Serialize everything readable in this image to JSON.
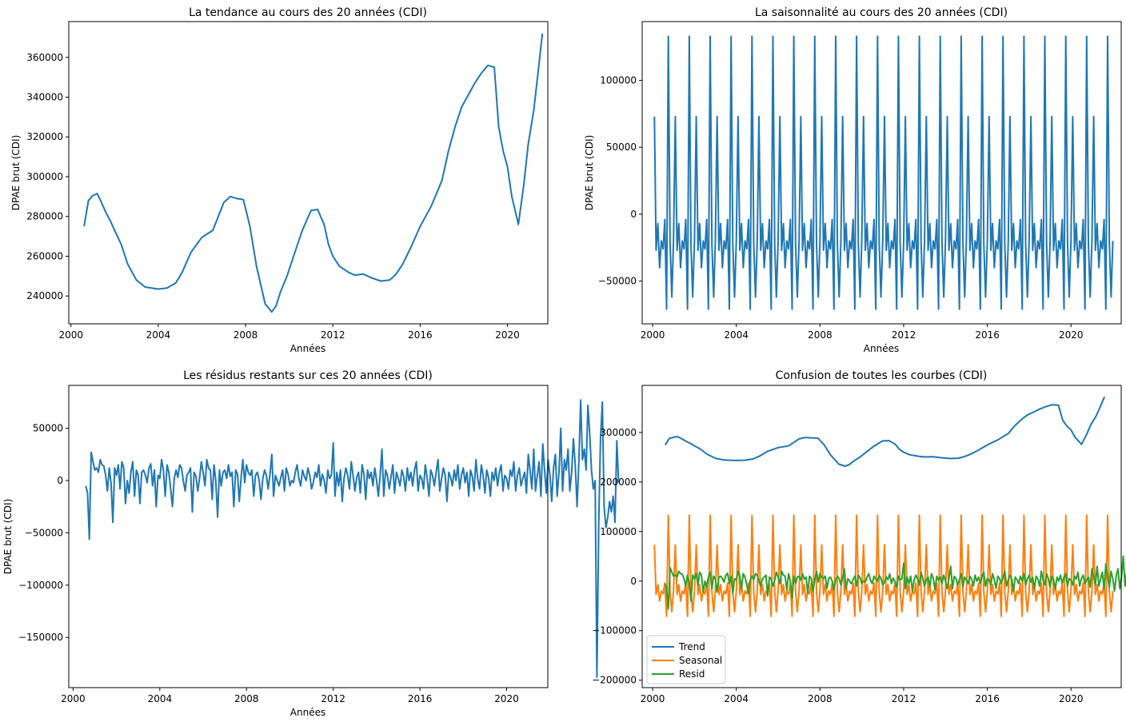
{
  "figure": {
    "background": "#ffffff"
  },
  "chart_data": [
    {
      "type": "line",
      "title": "La tendance au cours des 20 années (CDI)",
      "xlabel": "Années",
      "ylabel": "DPAE brut (CDI)",
      "xlim": [
        1999.9,
        2021.85
      ],
      "ylim": [
        226000,
        378000
      ],
      "xticks": [
        2000,
        2004,
        2008,
        2012,
        2016,
        2020
      ],
      "xtick_labels": [
        "2000",
        "2004",
        "2008",
        "2012",
        "2016",
        "2020"
      ],
      "yticks": [
        240000,
        260000,
        280000,
        300000,
        320000,
        340000,
        360000
      ],
      "ytick_labels": [
        "240000",
        "260000",
        "280000",
        "300000",
        "320000",
        "340000",
        "360000"
      ],
      "series": [
        {
          "name": "Trend",
          "color": "#1f77b4",
          "x": [
            2000.6,
            2000.8,
            2001.0,
            2001.2,
            2001.4,
            2001.6,
            2001.8,
            2002.0,
            2002.3,
            2002.6,
            2003.0,
            2003.4,
            2003.7,
            2004.0,
            2004.4,
            2004.8,
            2005.1,
            2005.5,
            2006.0,
            2006.5,
            2007.0,
            2007.3,
            2007.6,
            2007.9,
            2008.2,
            2008.5,
            2008.9,
            2009.2,
            2009.4,
            2009.6,
            2009.9,
            2010.2,
            2010.6,
            2011.0,
            2011.3,
            2011.6,
            2011.8,
            2012.0,
            2012.3,
            2012.7,
            2013.0,
            2013.4,
            2013.8,
            2014.2,
            2014.6,
            2014.9,
            2015.2,
            2015.6,
            2016.0,
            2016.5,
            2017.0,
            2017.3,
            2017.6,
            2017.9,
            2018.2,
            2018.5,
            2018.8,
            2019.1,
            2019.4,
            2019.6,
            2019.8,
            2020.0,
            2020.2,
            2020.5,
            2020.75,
            2020.95,
            2021.2,
            2021.4,
            2021.6
          ],
          "y": [
            275000,
            288000,
            290500,
            291500,
            287000,
            282000,
            278000,
            273000,
            266000,
            256000,
            248000,
            244500,
            244000,
            243500,
            244000,
            246500,
            252000,
            262000,
            269500,
            273000,
            287000,
            290000,
            289000,
            288500,
            275000,
            255000,
            236000,
            232000,
            235000,
            242000,
            250000,
            260000,
            273000,
            283000,
            283500,
            276000,
            266000,
            260000,
            255000,
            252000,
            250500,
            251000,
            249000,
            247500,
            248000,
            251000,
            256000,
            265000,
            275000,
            285000,
            298000,
            313000,
            325000,
            335000,
            341000,
            347000,
            352000,
            356000,
            355000,
            325000,
            313000,
            305000,
            290000,
            276000,
            296000,
            316000,
            333000,
            352000,
            372000
          ]
        }
      ]
    },
    {
      "type": "line",
      "title": "La saisonnalité au cours des 20 années (CDI)",
      "xlabel": "Années",
      "ylabel": "DPAE brut (CDI)",
      "xlim": [
        1999.5,
        2022.4
      ],
      "ylim": [
        -82000,
        144000
      ],
      "xticks": [
        2000,
        2004,
        2008,
        2012,
        2016,
        2020
      ],
      "xtick_labels": [
        "2000",
        "2004",
        "2008",
        "2012",
        "2016",
        "2020"
      ],
      "yticks": [
        -50000,
        0,
        50000,
        100000
      ],
      "ytick_labels": [
        "−50000",
        "0",
        "50000",
        "100000"
      ],
      "series": [
        {
          "name": "Seasonal",
          "color": "#1f77b4",
          "period": 1.0,
          "start": 2000.0833,
          "end": 2022.0,
          "profile": [
            73000,
            -27000,
            -7000,
            -40000,
            -20000,
            -26000,
            -4000,
            -71000,
            133000,
            -22000,
            -62000,
            -20000
          ]
        }
      ]
    },
    {
      "type": "line",
      "title": "Les résidus restants sur ces 20 années (CDI)",
      "xlabel": "Années",
      "ylabel": "DPAE brut (CDI)",
      "xlim": [
        1999.8,
        2021.9
      ],
      "ylim": [
        -198000,
        91000
      ],
      "xticks": [
        2000,
        2004,
        2008,
        2012,
        2016,
        2020
      ],
      "xtick_labels": [
        "2000",
        "2004",
        "2008",
        "2012",
        "2016",
        "2020"
      ],
      "yticks": [
        -150000,
        -100000,
        -50000,
        0,
        50000
      ],
      "ytick_labels": [
        "−150000",
        "−100000",
        "−50000",
        "0",
        "50000"
      ],
      "series": [
        {
          "name": "Resid",
          "color": "#1f77b4",
          "start": 2000.5833,
          "step": 0.08333,
          "values": [
            -5000,
            -12000,
            -56000,
            27000,
            18000,
            10000,
            12000,
            8000,
            20000,
            15000,
            14000,
            5000,
            -10000,
            12000,
            -3000,
            -40000,
            12000,
            5000,
            15000,
            -8000,
            18000,
            12000,
            -22000,
            0,
            -12000,
            8000,
            18000,
            -15000,
            10000,
            5000,
            -22000,
            8000,
            10000,
            5000,
            -2000,
            12000,
            16000,
            -5000,
            10000,
            -25000,
            5000,
            2000,
            20000,
            10000,
            -15000,
            15000,
            8000,
            -8000,
            -25000,
            2000,
            10000,
            3000,
            15000,
            12000,
            0,
            -10000,
            5000,
            8000,
            12000,
            -30000,
            8000,
            4000,
            -10000,
            2000,
            18000,
            8000,
            -5000,
            20000,
            12000,
            10000,
            -18000,
            15000,
            0,
            -35000,
            10000,
            -5000,
            8000,
            10000,
            2000,
            15000,
            4000,
            8000,
            -25000,
            10000,
            6000,
            -20000,
            3000,
            20000,
            -2000,
            15000,
            8000,
            5000,
            10000,
            -15000,
            5000,
            8000,
            0,
            -18000,
            2000,
            10000,
            5000,
            -8000,
            6000,
            25000,
            -15000,
            5000,
            0,
            -5000,
            3000,
            10000,
            -10000,
            12000,
            6000,
            -5000,
            0,
            -2000,
            8000,
            15000,
            2000,
            -5000,
            10000,
            4000,
            0,
            12000,
            5000,
            -8000,
            -2000,
            8000,
            3000,
            15000,
            -5000,
            6000,
            0,
            -12000,
            10000,
            2000,
            5000,
            36000,
            -15000,
            8000,
            -5000,
            10000,
            -20000,
            2000,
            12000,
            5000,
            -8000,
            18000,
            5000,
            -10000,
            3000,
            8000,
            -12000,
            15000,
            6000,
            -18000,
            10000,
            2000,
            8000,
            -5000,
            12000,
            0,
            -15000,
            5000,
            30000,
            -15000,
            10000,
            5000,
            -8000,
            3000,
            15000,
            -12000,
            8000,
            2000,
            -5000,
            10000,
            4000,
            -10000,
            12000,
            0,
            8000,
            -5000,
            10000,
            18000,
            -10000,
            5000,
            2000,
            -8000,
            15000,
            3000,
            -15000,
            10000,
            5000,
            -5000,
            8000,
            20000,
            -10000,
            2000,
            12000,
            5000,
            -20000,
            8000,
            3000,
            -5000,
            10000,
            0,
            15000,
            -8000,
            5000,
            12000,
            -2000,
            8000,
            -15000,
            10000,
            4000,
            -10000,
            20000,
            2000,
            -8000,
            15000,
            5000,
            -12000,
            10000,
            3000,
            -15000,
            8000,
            0,
            12000,
            -5000,
            8000,
            15000,
            -10000,
            5000,
            2000,
            -8000,
            10000,
            4000,
            18000,
            -10000,
            5000,
            12000,
            -5000,
            2000,
            8000,
            -12000,
            25000,
            10000,
            -8000,
            30000,
            -10000,
            5000,
            18000,
            -15000,
            35000,
            10000,
            -12000,
            20000,
            5000,
            -20000,
            12000,
            25000,
            -15000,
            8000,
            50000,
            -10000,
            20000,
            10000,
            30000,
            -10000,
            8000,
            40000,
            15000,
            -25000,
            18000,
            77000,
            20000,
            30000,
            10000,
            72000,
            45000,
            10000,
            -8000,
            0,
            -188000,
            -40000,
            40000,
            75000,
            -25000,
            -45000,
            -35000,
            -20000,
            -30000,
            -15000,
            -40000,
            38000,
            -2000
          ]
        }
      ]
    },
    {
      "type": "line",
      "title": "Confusion de toutes les courbes (CDI)",
      "xlabel": "",
      "ylabel": "",
      "xlim": [
        1999.5,
        2022.4
      ],
      "ylim": [
        -215000,
        395000
      ],
      "xticks": [
        2000,
        2004,
        2008,
        2012,
        2016,
        2020
      ],
      "xtick_labels": [
        "2000",
        "2004",
        "2008",
        "2012",
        "2016",
        "2020"
      ],
      "yticks": [
        -200000,
        -100000,
        0,
        100000,
        200000,
        300000
      ],
      "ytick_labels": [
        "−200000",
        "−100000",
        "0",
        "100000",
        "200000",
        "300000"
      ],
      "legend_position": "lower-left",
      "legend": [
        {
          "label": "Trend",
          "color": "#1f77b4"
        },
        {
          "label": "Seasonal",
          "color": "#ff7f0e"
        },
        {
          "label": "Resid",
          "color": "#2ca02c"
        }
      ],
      "series": [
        {
          "name": "Trend",
          "color": "#1f77b4",
          "ref": "trend"
        },
        {
          "name": "Seasonal",
          "color": "#ff7f0e",
          "ref": "seasonal"
        },
        {
          "name": "Resid",
          "color": "#2ca02c",
          "ref": "resid"
        }
      ]
    }
  ]
}
